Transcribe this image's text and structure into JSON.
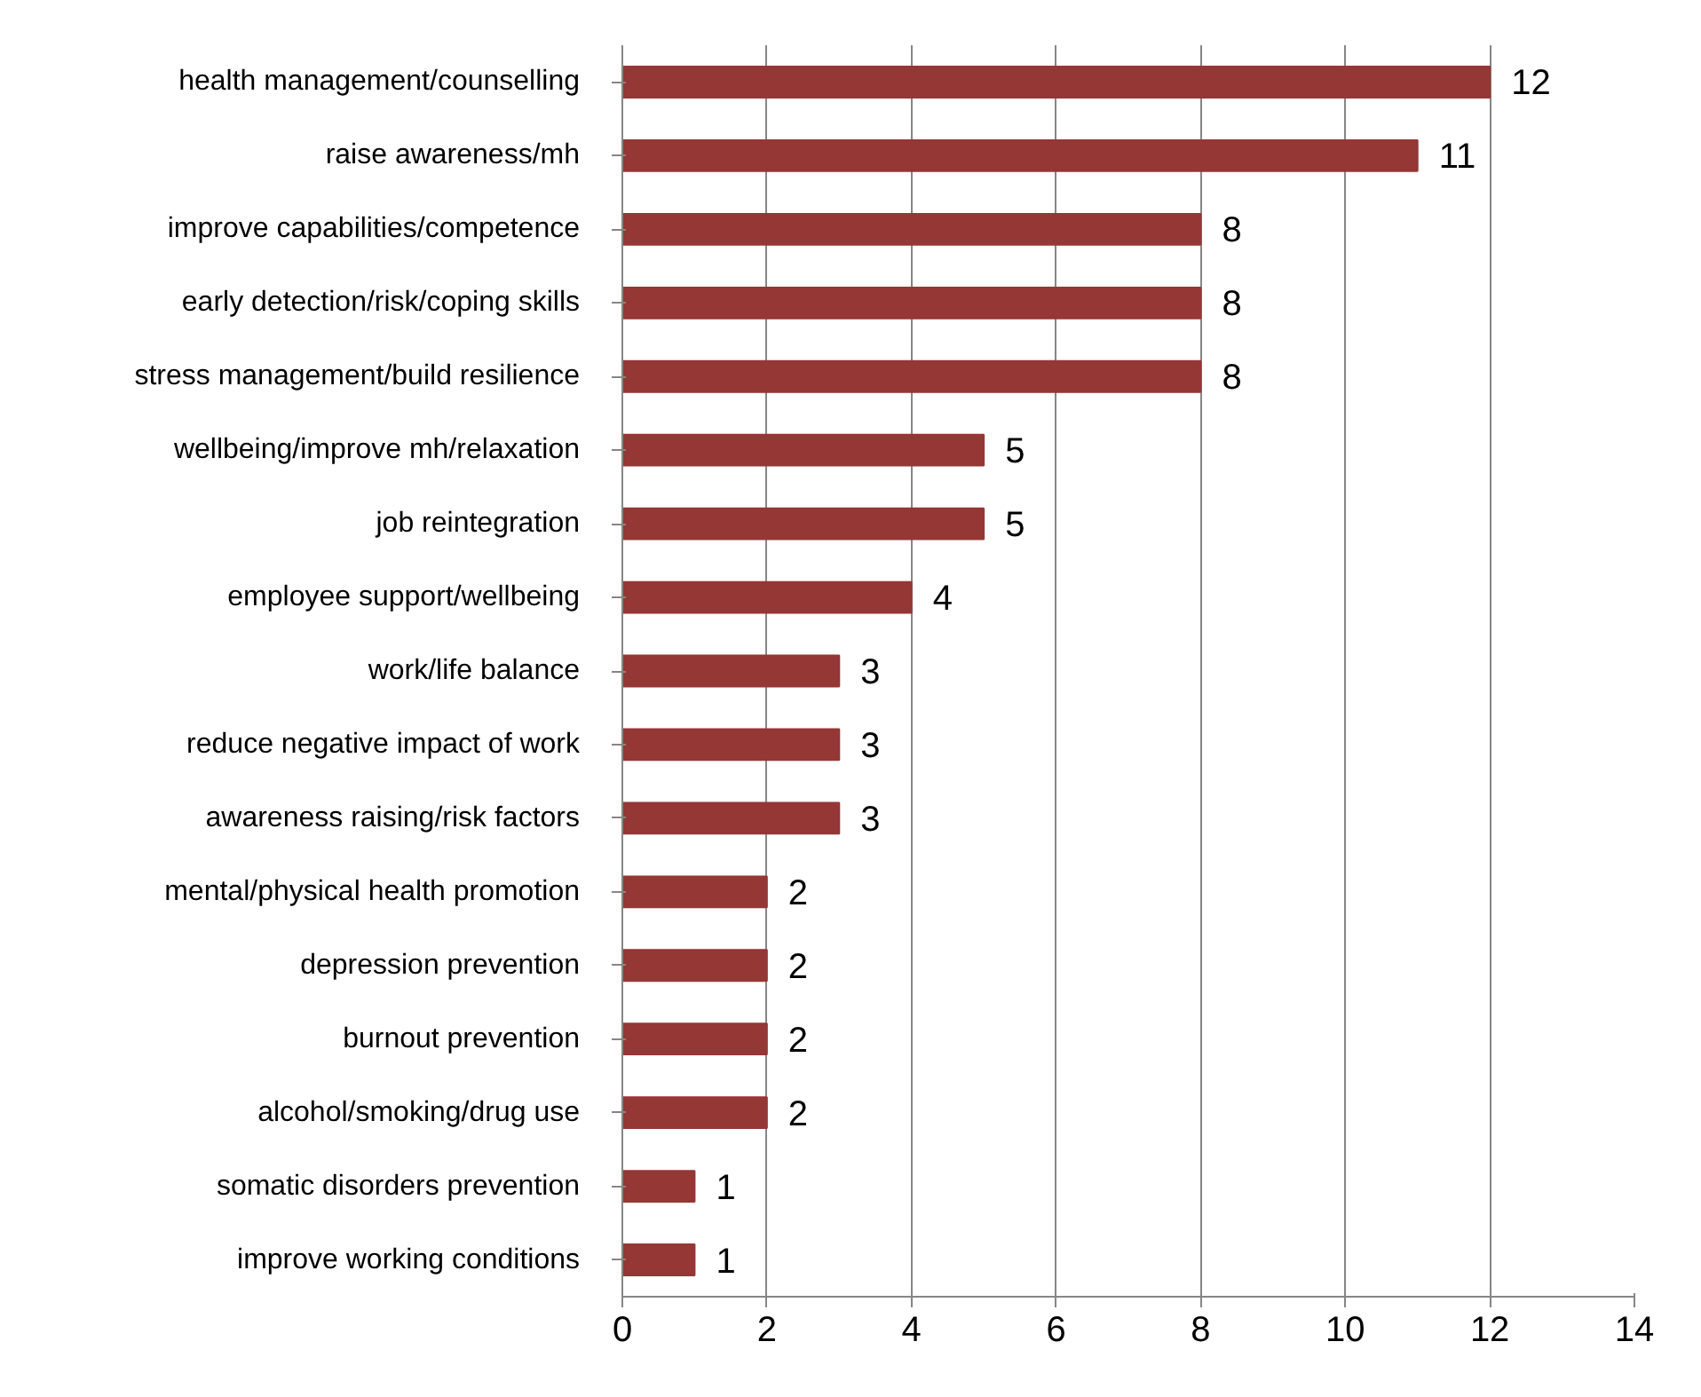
{
  "chart_data": {
    "type": "bar",
    "orientation": "horizontal",
    "categories": [
      "health management/counselling",
      "raise awareness/mh",
      "improve capabilities/competence",
      "early detection/risk/coping skills",
      "stress management/build resilience",
      "wellbeing/improve mh/relaxation",
      "job reintegration",
      "employee support/wellbeing",
      "work/life balance",
      "reduce negative impact of work",
      "awareness raising/risk factors",
      "mental/physical health promotion",
      "depression prevention",
      "burnout prevention",
      "alcohol/smoking/drug use",
      "somatic disorders prevention",
      "improve working conditions"
    ],
    "values": [
      12,
      11,
      8,
      8,
      8,
      5,
      5,
      4,
      3,
      3,
      3,
      2,
      2,
      2,
      2,
      1,
      1
    ],
    "color": "#953735",
    "xlim": [
      0,
      14
    ],
    "xticks": [
      0,
      2,
      4,
      6,
      8,
      10,
      12,
      14
    ],
    "grid": "x",
    "data_labels": true
  }
}
